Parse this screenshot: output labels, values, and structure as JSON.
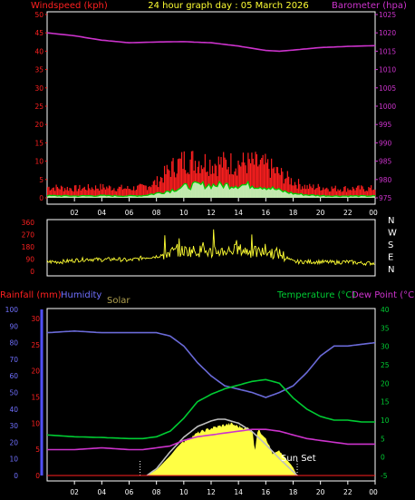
{
  "title": "24 hour graph day : 05 March 2026",
  "colors": {
    "wind": "#ff2020",
    "gust": "#ff2020",
    "avg": "#00cc00",
    "baro": "#cc33cc",
    "dir": "#ffff33",
    "humidity": "#6a6ad8",
    "temp": "#00cc33",
    "dew": "#cc33cc",
    "rain": "#ff2020",
    "solar": "#ffff44",
    "solarMax": "#bfbfbf",
    "frame": "#ffffff"
  },
  "chart_data": [
    {
      "type": "line",
      "name": "wind-baro",
      "left_label": "Windspeed (kph)",
      "right_label": "Barometer (hpa)",
      "x_ticks": [
        "02",
        "04",
        "06",
        "08",
        "10",
        "12",
        "14",
        "16",
        "18",
        "20",
        "22",
        "00"
      ],
      "y_left_ticks": [
        0,
        5,
        10,
        15,
        20,
        25,
        30,
        35,
        40,
        45,
        50
      ],
      "y_right_ticks": [
        975,
        980,
        985,
        990,
        995,
        1000,
        1005,
        1010,
        1015,
        1020,
        1025
      ],
      "ylim_left": [
        0,
        50
      ],
      "ylim_right": [
        975,
        1025
      ],
      "barometer": {
        "x": [
          0,
          2,
          4,
          6,
          8,
          10,
          12,
          14,
          15,
          16,
          17,
          18,
          20,
          22,
          24
        ],
        "y": [
          1020,
          1019.2,
          1018,
          1017.3,
          1017.5,
          1017.6,
          1017.3,
          1016.4,
          1015.8,
          1015.2,
          1015,
          1015.3,
          1016,
          1016.3,
          1016.5
        ]
      },
      "gust_envelope": {
        "x": [
          0,
          2,
          4,
          6,
          7,
          8,
          9,
          10,
          11,
          12,
          13,
          14,
          15,
          16,
          17,
          18,
          19,
          20,
          21,
          22,
          23,
          24
        ],
        "y": [
          4,
          3.5,
          4,
          3.5,
          4,
          6,
          11,
          14,
          14,
          13,
          13,
          13,
          13,
          12,
          9,
          6,
          4,
          4,
          3.5,
          3.5,
          3.5,
          3.5
        ]
      },
      "average": {
        "x": [
          0,
          2,
          4,
          6,
          7,
          8,
          9,
          10,
          11,
          12,
          13,
          14,
          15,
          16,
          17,
          18,
          19,
          20,
          21,
          22,
          23,
          24
        ],
        "y": [
          0.6,
          0.5,
          0.6,
          0.5,
          0.6,
          1.2,
          2,
          3,
          3.5,
          3.5,
          3.5,
          3.5,
          3.5,
          3,
          2,
          1.2,
          0.8,
          0.6,
          0.5,
          0.5,
          0.5,
          0.5
        ]
      }
    },
    {
      "type": "scatter",
      "name": "wind-direction",
      "y_ticks": [
        0,
        90,
        180,
        270,
        360
      ],
      "right_labels": [
        "N",
        "W",
        "S",
        "E",
        "N"
      ],
      "ylim": [
        0,
        360
      ],
      "direction": {
        "x": [
          0,
          1,
          2,
          3,
          4,
          5,
          6,
          7,
          8,
          9,
          10,
          11,
          12,
          13,
          14,
          15,
          16,
          17,
          18,
          19,
          20,
          21,
          22,
          23,
          24
        ],
        "y": [
          70,
          70,
          80,
          90,
          85,
          90,
          80,
          100,
          110,
          140,
          150,
          150,
          140,
          150,
          160,
          140,
          140,
          130,
          70,
          70,
          70,
          65,
          70,
          60,
          60
        ]
      }
    },
    {
      "type": "line",
      "name": "temperature-humidity-rain-solar",
      "left_labels": [
        "Rainfall (mm)",
        "Humidity",
        "Solar"
      ],
      "right_labels": [
        "Temperature (°C)",
        "Dew Point (°C)"
      ],
      "x_ticks": [
        "02",
        "04",
        "06",
        "08",
        "10",
        "12",
        "14",
        "16",
        "18",
        "20",
        "22",
        "00"
      ],
      "humidity_ticks": [
        0,
        10,
        20,
        30,
        40,
        50,
        60,
        70,
        80,
        90,
        100
      ],
      "rain_ticks": [
        0,
        5,
        10,
        15,
        20,
        25,
        30
      ],
      "temp_ticks": [
        -5,
        0,
        5,
        10,
        15,
        20,
        25,
        30,
        35,
        40
      ],
      "sun_set_label": "Sun Set",
      "sunrise_hour": 6.8,
      "sunset_hour": 18.3,
      "humidity": {
        "x": [
          0,
          2,
          4,
          6,
          7,
          8,
          9,
          10,
          11,
          12,
          13,
          14,
          15,
          16,
          17,
          18,
          19,
          20,
          21,
          22,
          23,
          24
        ],
        "y": [
          86,
          87,
          86,
          86,
          86,
          86,
          84,
          78,
          68,
          60,
          54,
          52,
          50,
          47,
          50,
          54,
          62,
          72,
          78,
          78,
          79,
          80
        ]
      },
      "temperature": {
        "x": [
          0,
          2,
          4,
          6,
          7,
          8,
          9,
          10,
          11,
          12,
          13,
          14,
          15,
          16,
          17,
          18,
          19,
          20,
          21,
          22,
          23,
          24
        ],
        "y": [
          6,
          5.5,
          5.3,
          5,
          5,
          5.5,
          7,
          10.5,
          15,
          17,
          18.5,
          19.5,
          20.5,
          21,
          20,
          16,
          13,
          11,
          10,
          10,
          9.5,
          9.5
        ]
      },
      "dew_point": {
        "x": [
          0,
          2,
          4,
          6,
          7,
          8,
          9,
          10,
          11,
          12,
          13,
          14,
          15,
          16,
          17,
          18,
          19,
          20,
          21,
          22,
          23,
          24
        ],
        "y": [
          2,
          2,
          2.5,
          2,
          2,
          2.5,
          3,
          4.5,
          5.5,
          6,
          6.5,
          7,
          7.5,
          7.5,
          7,
          6,
          5,
          4.5,
          4,
          3.5,
          3.5,
          3.5
        ]
      },
      "solar_max_norm": {
        "x": [
          7.3,
          8,
          9,
          10,
          11,
          12,
          12.5,
          13,
          14,
          15,
          16,
          17,
          18.3
        ],
        "y": [
          0,
          0.12,
          0.42,
          0.68,
          0.87,
          0.97,
          1.0,
          1.0,
          0.93,
          0.78,
          0.55,
          0.3,
          0
        ]
      },
      "solar_norm": {
        "x": [
          7.3,
          8,
          9,
          9.5,
          10,
          11,
          12,
          13,
          13.5,
          14,
          14.5,
          15,
          15.2,
          15.4,
          16,
          16.5,
          17,
          17.5,
          18,
          18.3
        ],
        "y": [
          0,
          0.1,
          0.35,
          0.5,
          0.62,
          0.78,
          0.87,
          0.93,
          0.95,
          0.9,
          0.88,
          0.86,
          0.45,
          0.85,
          0.7,
          0.4,
          0.45,
          0.3,
          0.15,
          0
        ]
      }
    }
  ]
}
